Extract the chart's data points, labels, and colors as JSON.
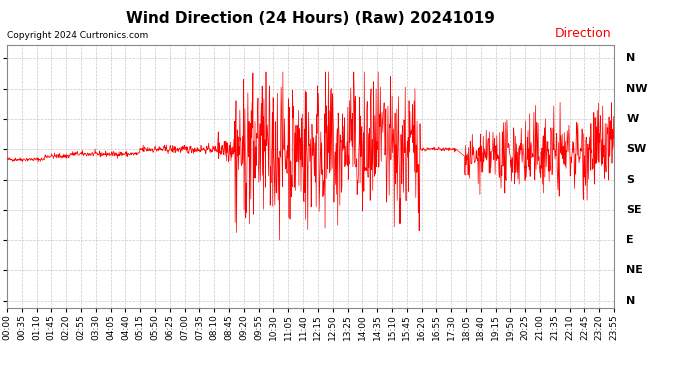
{
  "title": "Wind Direction (24 Hours) (Raw) 20241019",
  "copyright": "Copyright 2024 Curtronics.com",
  "legend_label": "Direction",
  "legend_color": "#ff0000",
  "line_color": "#ff0000",
  "background_color": "#ffffff",
  "grid_color": "#bbbbbb",
  "ytick_labels": [
    "N",
    "NW",
    "W",
    "SW",
    "S",
    "SE",
    "E",
    "NE",
    "N"
  ],
  "ytick_values": [
    360,
    315,
    270,
    225,
    180,
    135,
    90,
    45,
    0
  ],
  "ylim": [
    -10,
    380
  ],
  "title_fontsize": 11,
  "tick_fontsize": 7,
  "copyright_fontsize": 6.5,
  "legend_fontsize": 9,
  "total_minutes": 1440,
  "xtick_labels": [
    "00:00",
    "00:35",
    "01:10",
    "01:45",
    "02:20",
    "02:55",
    "03:30",
    "04:05",
    "04:40",
    "05:15",
    "05:50",
    "06:25",
    "07:00",
    "07:35",
    "08:10",
    "08:45",
    "09:20",
    "09:55",
    "10:30",
    "11:05",
    "11:40",
    "12:15",
    "12:50",
    "13:25",
    "14:00",
    "14:35",
    "15:10",
    "15:45",
    "16:20",
    "16:55",
    "17:30",
    "18:05",
    "18:40",
    "19:15",
    "19:50",
    "20:25",
    "21:00",
    "21:35",
    "22:10",
    "22:45",
    "23:20",
    "23:55"
  ]
}
